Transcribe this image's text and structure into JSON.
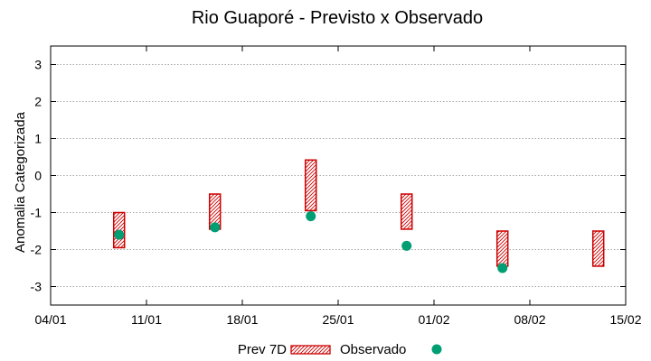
{
  "chart_data": {
    "type": "floating-bar-scatter",
    "title": "Rio Guaporé - Previsto x Observado",
    "xlabel": "",
    "ylabel": "Anomalia Categorizada",
    "x_ticks": [
      "04/01",
      "11/01",
      "18/01",
      "25/01",
      "01/02",
      "08/02",
      "15/02"
    ],
    "xlim": [
      0,
      42
    ],
    "ylim": [
      -3.5,
      3.5
    ],
    "y_ticks": [
      -3,
      -2,
      -1,
      0,
      1,
      2,
      3
    ],
    "grid": "horizontal dotted",
    "legend_position": "bottom",
    "series": [
      {
        "name": "Prev 7D",
        "kind": "range-bar",
        "color": "#cc0000",
        "points": [
          {
            "x": 5,
            "low": -1.95,
            "high": -1.0
          },
          {
            "x": 12,
            "low": -1.45,
            "high": -0.5
          },
          {
            "x": 19,
            "low": -0.95,
            "high": 0.42
          },
          {
            "x": 26,
            "low": -1.45,
            "high": -0.5
          },
          {
            "x": 33,
            "low": -2.45,
            "high": -1.5
          },
          {
            "x": 40,
            "low": -2.45,
            "high": -1.5
          }
        ]
      },
      {
        "name": "Observado",
        "kind": "scatter",
        "color": "#009e73",
        "points": [
          {
            "x": 5,
            "y": -1.6
          },
          {
            "x": 12,
            "y": -1.4
          },
          {
            "x": 19,
            "y": -1.1
          },
          {
            "x": 26,
            "y": -1.9
          },
          {
            "x": 33,
            "y": -2.5
          }
        ]
      }
    ]
  }
}
